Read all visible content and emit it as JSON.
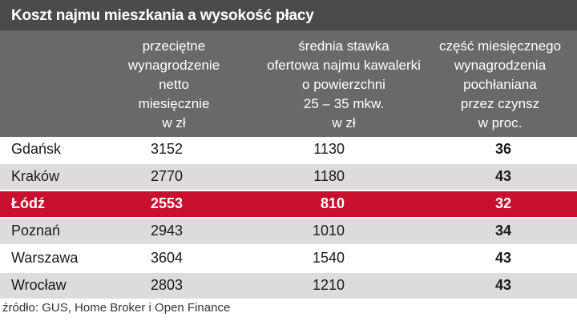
{
  "title": "Koszt najmu mieszkania a wysokość płacy",
  "columns": {
    "wage": "przeciętne\nwynagrodzenie\nnetto\nmiesięcznie\nw zł",
    "rent": "średnia stawka\nofertowa najmu kawalerki\no powierzchni\n25 – 35 mkw.\nw zł",
    "share": "część miesięcznego\nwynagrodzenia\npochłaniana\nprzez czynsz\nw proc."
  },
  "rows": [
    {
      "city": "Gdańsk",
      "wage": "3152",
      "rent": "1130",
      "share": "36"
    },
    {
      "city": "Kraków",
      "wage": "2770",
      "rent": "1180",
      "share": "43"
    },
    {
      "city": "Łódź",
      "wage": "2553",
      "rent": "810",
      "share": "32"
    },
    {
      "city": "Poznań",
      "wage": "2943",
      "rent": "1010",
      "share": "34"
    },
    {
      "city": "Warszawa",
      "wage": "3604",
      "rent": "1540",
      "share": "43"
    },
    {
      "city": "Wrocław",
      "wage": "2803",
      "rent": "1210",
      "share": "43"
    }
  ],
  "highlight_row": "Łódź",
  "colors": {
    "title_bar": "#4a4a4a",
    "header": "#696969",
    "stripe": "#dcdcdc",
    "highlight": "#c8102e"
  },
  "source": "źródło: GUS, Home Broker i Open Finance"
}
